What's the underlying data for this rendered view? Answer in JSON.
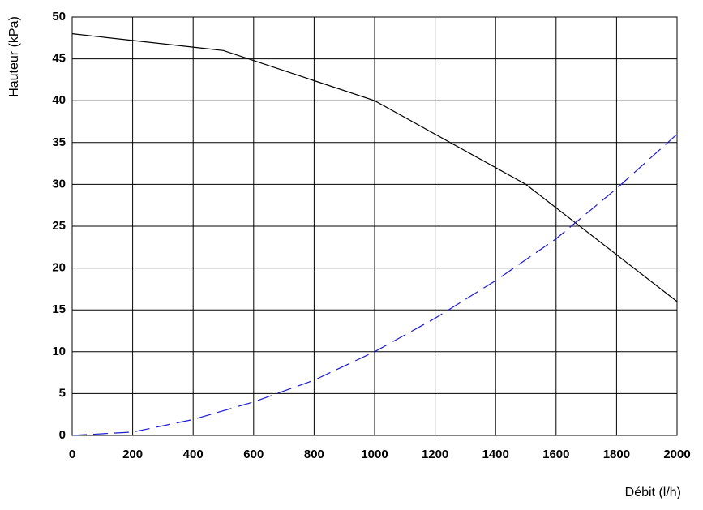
{
  "chart_data": {
    "type": "line",
    "y_label": "Hauteur (kPa)",
    "x_label": "Débit (l/h)",
    "series": [
      {
        "color": "#000000",
        "dashed": false,
        "x": [
          0,
          500,
          1000,
          1500,
          2000
        ],
        "values": [
          48,
          46,
          40,
          30,
          16
        ]
      },
      {
        "color": "#1a1ad0",
        "dashed": true,
        "x": [
          0,
          200,
          400,
          600,
          800,
          1000,
          1200,
          1400,
          1600,
          1800,
          2000
        ],
        "values": [
          0,
          0.4,
          1.9,
          4,
          6.6,
          10,
          14,
          18.5,
          23.5,
          29.5,
          36
        ]
      }
    ],
    "xlim": [
      0,
      2000
    ],
    "xticks": [
      0,
      200,
      400,
      600,
      800,
      1000,
      1200,
      1400,
      1600,
      1800,
      2000
    ],
    "ylim": [
      0,
      50
    ],
    "yticks": [
      0,
      5,
      10,
      15,
      20,
      25,
      30,
      35,
      40,
      45,
      50
    ],
    "grid": true
  }
}
